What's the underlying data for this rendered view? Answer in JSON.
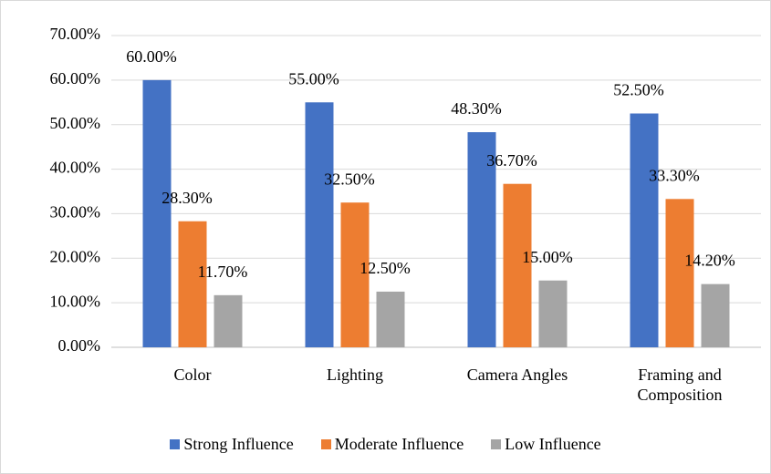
{
  "chart_data": {
    "type": "bar",
    "categories": [
      "Color",
      "Lighting",
      "Camera Angles",
      "Framing and Composition"
    ],
    "series": [
      {
        "name": "Strong Influence",
        "color": "#4472c4",
        "values": [
          60,
          55,
          48.3,
          52.5
        ],
        "value_labels": [
          "60.00%",
          "55.00%",
          "48.30%",
          "52.50%"
        ]
      },
      {
        "name": "Moderate Influence",
        "color": "#ed7d31",
        "values": [
          28.3,
          32.5,
          36.7,
          33.3
        ],
        "value_labels": [
          "28.30%",
          "32.50%",
          "36.70%",
          "33.30%"
        ]
      },
      {
        "name": "Low Influence",
        "color": "#a5a5a5",
        "values": [
          11.7,
          12.5,
          15,
          14.2
        ],
        "value_labels": [
          "11.70%",
          "12.50%",
          "15.00%",
          "14.20%"
        ]
      }
    ],
    "ylim": [
      0,
      70
    ],
    "yticks": [
      {
        "value": 0,
        "label": "0.00%"
      },
      {
        "value": 10,
        "label": "10.00%"
      },
      {
        "value": 20,
        "label": "20.00%"
      },
      {
        "value": 30,
        "label": "30.00%"
      },
      {
        "value": 40,
        "label": "40.00%"
      },
      {
        "value": 50,
        "label": "50.00%"
      },
      {
        "value": 60,
        "label": "60.00%"
      },
      {
        "value": 70,
        "label": "70.00%"
      }
    ],
    "grid": true,
    "legend": "bottom"
  }
}
